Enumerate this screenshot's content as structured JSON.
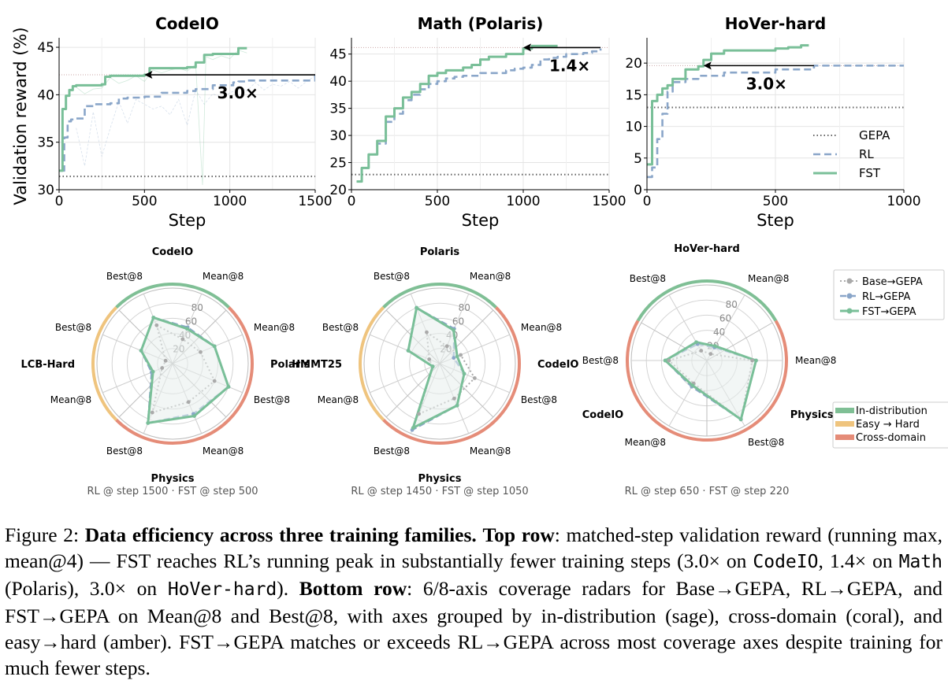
{
  "colors": {
    "gepa": "#666666",
    "rl": "#8aa6c9",
    "fst": "#79bf98",
    "base": "#aaaaaa",
    "in_distribution": "#7fbf95",
    "easy_hard": "#efc47e",
    "cross_domain": "#e58c78",
    "radar_fill": "#e7efec"
  },
  "chart_data": [
    {
      "type": "line",
      "title": "CodeIO",
      "xlabel": "Step",
      "ylabel": "Validation reward (%)",
      "xlim": [
        0,
        1500
      ],
      "ylim": [
        30,
        46
      ],
      "xticks": [
        0,
        500,
        1000,
        1500
      ],
      "yticks": [
        30,
        35,
        40,
        45
      ],
      "grid": true,
      "series": [
        {
          "name": "GEPA",
          "style": "dotted",
          "x": [
            0,
            1500
          ],
          "y": [
            31.4,
            31.4
          ]
        },
        {
          "name": "RL",
          "style": "dashed",
          "x": [
            20,
            30,
            50,
            70,
            100,
            150,
            200,
            300,
            350,
            400,
            500,
            550,
            600,
            700,
            750,
            800,
            850,
            900,
            1000,
            1020,
            1050,
            1100,
            1250,
            1500
          ],
          "y": [
            32,
            35.5,
            37.2,
            37.4,
            37.5,
            38.8,
            39.0,
            39.1,
            39.6,
            39.7,
            39.8,
            39.8,
            40.2,
            40.2,
            40.4,
            40.6,
            40.6,
            41.0,
            41.0,
            41.3,
            41.4,
            41.5,
            41.5,
            42.1
          ]
        },
        {
          "name": "FST",
          "style": "solid",
          "x": [
            0,
            20,
            40,
            60,
            80,
            100,
            150,
            200,
            250,
            270,
            300,
            500,
            530,
            750,
            800,
            850,
            900,
            1000,
            1050,
            1100
          ],
          "y": [
            32,
            38.5,
            39.9,
            40.5,
            40.9,
            41.0,
            41.0,
            41.0,
            41.1,
            41.9,
            42.0,
            42.1,
            42.8,
            42.9,
            43.4,
            44.2,
            44.3,
            44.3,
            44.9,
            44.9
          ]
        },
        {
          "name": "RL (raw)",
          "style": "thin",
          "x": [
            100,
            150,
            200,
            250,
            300,
            350,
            400,
            450,
            500,
            550,
            600,
            650,
            700,
            750,
            800,
            850,
            900,
            950,
            1000,
            1050,
            1100,
            1150,
            1200,
            1250,
            1300,
            1350,
            1400,
            1450,
            1500
          ],
          "y": [
            36.5,
            32.5,
            38.2,
            33.5,
            36.5,
            39.3,
            37.0,
            39.5,
            39.0,
            38.5,
            38.8,
            37.9,
            39.5,
            36.8,
            40.5,
            39.0,
            40.1,
            39.7,
            40.2,
            40.6,
            40.4,
            41.3,
            40.5,
            41.1,
            40.9,
            41.4,
            40.7,
            41.4,
            42.0
          ]
        },
        {
          "name": "FST (raw)",
          "style": "thin",
          "x": [
            100,
            150,
            200,
            250,
            300,
            350,
            400,
            450,
            500,
            550,
            600,
            650,
            700,
            750,
            800,
            840,
            860,
            900,
            950,
            1000,
            1050,
            1100
          ],
          "y": [
            40.8,
            40.1,
            40.6,
            40.7,
            41.8,
            41.2,
            41.5,
            42.0,
            41.4,
            42.6,
            42.3,
            42.6,
            42.8,
            42.5,
            43.2,
            30.5,
            44.0,
            43.7,
            44.1,
            43.8,
            44.7,
            44.4
          ]
        }
      ],
      "reference_line": 42.1,
      "annotation": {
        "text": "3.0×",
        "from_x": 1500,
        "to_x": 500,
        "y": 42.1
      }
    },
    {
      "type": "line",
      "title": "Math (Polaris)",
      "xlabel": "Step",
      "ylabel": "",
      "xlim": [
        0,
        1500
      ],
      "ylim": [
        20,
        48
      ],
      "xticks": [
        0,
        500,
        1000,
        1500
      ],
      "yticks": [
        20,
        25,
        30,
        35,
        40,
        45
      ],
      "grid": true,
      "series": [
        {
          "name": "GEPA",
          "style": "dotted",
          "x": [
            0,
            1500
          ],
          "y": [
            22.8,
            22.8
          ]
        },
        {
          "name": "RL",
          "style": "dashed",
          "x": [
            30,
            60,
            100,
            150,
            200,
            250,
            300,
            350,
            400,
            450,
            500,
            550,
            600,
            650,
            700,
            750,
            800,
            850,
            900,
            950,
            1000,
            1050,
            1100,
            1150,
            1200,
            1250,
            1300,
            1350,
            1400,
            1450
          ],
          "y": [
            21.5,
            24.0,
            26.5,
            28.5,
            32.5,
            34.0,
            36.5,
            37.5,
            38.5,
            39.5,
            40.0,
            40.5,
            40.8,
            41.0,
            41.0,
            41.5,
            41.5,
            41.5,
            42.0,
            42.3,
            42.5,
            43.0,
            44.0,
            44.3,
            44.5,
            45.0,
            45.0,
            45.2,
            45.5,
            46.0
          ]
        },
        {
          "name": "FST",
          "style": "solid",
          "x": [
            30,
            60,
            100,
            150,
            200,
            250,
            300,
            350,
            400,
            450,
            500,
            550,
            600,
            650,
            700,
            750,
            800,
            850,
            900,
            950,
            1000,
            1050,
            1100,
            1200
          ],
          "y": [
            21.5,
            24.0,
            26.5,
            29.0,
            33.5,
            35.0,
            37.0,
            38.0,
            39.5,
            41.0,
            41.5,
            42.0,
            42.0,
            42.5,
            43.0,
            44.0,
            44.5,
            44.5,
            45.0,
            45.0,
            46.0,
            46.5,
            46.5,
            46.5
          ]
        }
      ],
      "reference_line": 46.2,
      "annotation": {
        "text": "1.4×",
        "from_x": 1450,
        "to_x": 1000,
        "y": 46.2
      }
    },
    {
      "type": "line",
      "title": "HoVer-hard",
      "xlabel": "Step",
      "ylabel": "",
      "xlim": [
        0,
        1000
      ],
      "ylim": [
        0,
        24
      ],
      "xticks": [
        0,
        500,
        1000
      ],
      "yticks": [
        0,
        5,
        10,
        15,
        20
      ],
      "grid": true,
      "series": [
        {
          "name": "GEPA",
          "style": "dotted",
          "x": [
            0,
            1000
          ],
          "y": [
            13,
            13
          ]
        },
        {
          "name": "RL",
          "style": "dashed",
          "x": [
            0,
            20,
            40,
            60,
            80,
            100,
            150,
            200,
            250,
            300,
            350,
            400,
            450,
            500,
            550,
            600,
            650,
            1000
          ],
          "y": [
            2,
            3.5,
            8,
            12,
            15.5,
            17,
            17.5,
            18,
            18,
            18.5,
            18.5,
            18.5,
            18.5,
            19,
            19,
            19,
            19.6,
            19.6
          ]
        },
        {
          "name": "FST",
          "style": "solid",
          "x": [
            0,
            20,
            40,
            60,
            80,
            100,
            150,
            200,
            220,
            250,
            300,
            400,
            500,
            550,
            600,
            630
          ],
          "y": [
            4,
            14,
            15,
            16,
            16.5,
            17.5,
            19,
            19.5,
            20.5,
            21.5,
            22,
            22,
            22.3,
            22.5,
            22.8,
            22.8
          ]
        }
      ],
      "reference_line": 19.6,
      "annotation": {
        "text": "3.0×",
        "from_x": 650,
        "to_x": 220,
        "y": 19.6
      },
      "legend": {
        "placement": "lower-right",
        "entries": [
          "GEPA",
          "RL",
          "FST"
        ]
      }
    }
  ],
  "radars": [
    {
      "title": "CodeIO",
      "footer": "RL @ step 1500 · FST @ step 500",
      "rings": [
        20,
        40,
        60,
        80
      ],
      "max": 100,
      "groups": [
        {
          "label": "CodeIO",
          "axes": [
            "Best@8",
            "Mean@8"
          ],
          "color": "in_distribution"
        },
        {
          "label": "Polaris",
          "axes": [
            "Mean@8",
            "Best@8"
          ],
          "color": "cross_domain"
        },
        {
          "label": "Physics",
          "axes": [
            "Mean@8",
            "Best@8"
          ],
          "color": "cross_domain"
        },
        {
          "label": "LCB-Hard",
          "axes": [
            "Mean@8",
            "Best@8"
          ],
          "color": "easy_hard"
        }
      ],
      "values": {
        "Base→GEPA": [
          55,
          35,
          40,
          60,
          55,
          70,
          15,
          10
        ],
        "RL→GEPA": [
          66,
          52,
          60,
          80,
          72,
          85,
          30,
          45
        ],
        "FST→GEPA": [
          66,
          50,
          60,
          80,
          75,
          85,
          28,
          45
        ]
      }
    },
    {
      "title": "Polaris",
      "footer": "RL @ step 1450 · FST @ step 1050",
      "rings": [
        20,
        40,
        60,
        80
      ],
      "max": 100,
      "groups": [
        {
          "label": "Polaris",
          "axes": [
            "Best@8",
            "Mean@8"
          ],
          "color": "in_distribution"
        },
        {
          "label": "CodeIO",
          "axes": [
            "Mean@8",
            "Best@8"
          ],
          "color": "cross_domain"
        },
        {
          "label": "Physics",
          "axes": [
            "Mean@8",
            "Best@8"
          ],
          "color": "cross_domain"
        },
        {
          "label": "HMMT25",
          "axes": [
            "Mean@8",
            "Best@8"
          ],
          "color": "easy_hard"
        }
      ],
      "values": {
        "Base→GEPA": [
          45,
          25,
          30,
          50,
          50,
          72,
          10,
          15
        ],
        "RL→GEPA": [
          80,
          50,
          20,
          35,
          60,
          95,
          10,
          45
        ],
        "FST→GEPA": [
          80,
          48,
          25,
          35,
          60,
          92,
          10,
          45
        ]
      }
    },
    {
      "title": "HoVer-hard",
      "footer": "RL @ step 650 · FST @ step 220",
      "rings": [
        20,
        40,
        60,
        80
      ],
      "max": 100,
      "groups": [
        {
          "label": "HoVer-hard",
          "axes": [
            "Best@8",
            "Mean@8"
          ],
          "color": "in_distribution"
        },
        {
          "label": "Physics",
          "axes": [
            "Mean@8",
            "Best@8"
          ],
          "color": "cross_domain"
        },
        {
          "label": "CodeIO",
          "axes": [
            "Mean@8",
            "Best@8"
          ],
          "color": "cross_domain"
        }
      ],
      "values": {
        "Base→GEPA": [
          15,
          10,
          60,
          90,
          35,
          50
        ],
        "RL→GEPA": [
          25,
          20,
          65,
          90,
          40,
          55
        ],
        "FST→GEPA": [
          28,
          22,
          65,
          90,
          38,
          55
        ]
      }
    }
  ],
  "radar_legend": {
    "series": [
      "Base→GEPA",
      "RL→GEPA",
      "FST→GEPA"
    ],
    "groups": [
      {
        "label": "In-distribution",
        "color": "in_distribution"
      },
      {
        "label": "Easy → Hard",
        "color": "easy_hard"
      },
      {
        "label": "Cross-domain",
        "color": "cross_domain"
      }
    ]
  },
  "caption": {
    "prefix": "Figure 2: ",
    "bold_title": "Data efficiency across three training families.",
    "top_label": "Top row",
    "top_text_1": ": matched-step validation reward (running max, mean@4) — FST reaches RL’s running peak in substantially fewer training steps (3.0× on ",
    "code_1": "CodeIO",
    "mid_1": ", 1.4× on ",
    "code_2": "Math",
    "mid_2": " (Polaris), 3.0× on ",
    "code_3": "HoVer-hard",
    "mid_3": "). ",
    "bottom_label": "Bottom row",
    "bottom_text": ": 6/8-axis coverage radars for Base→GEPA, RL→GEPA, and FST→GEPA on Mean@8 and Best@8, with axes grouped by in-distribution (sage), cross-domain (coral), and easy→hard (amber). FST→GEPA matches or exceeds RL→GEPA across most coverage axes despite training for much fewer steps."
  }
}
